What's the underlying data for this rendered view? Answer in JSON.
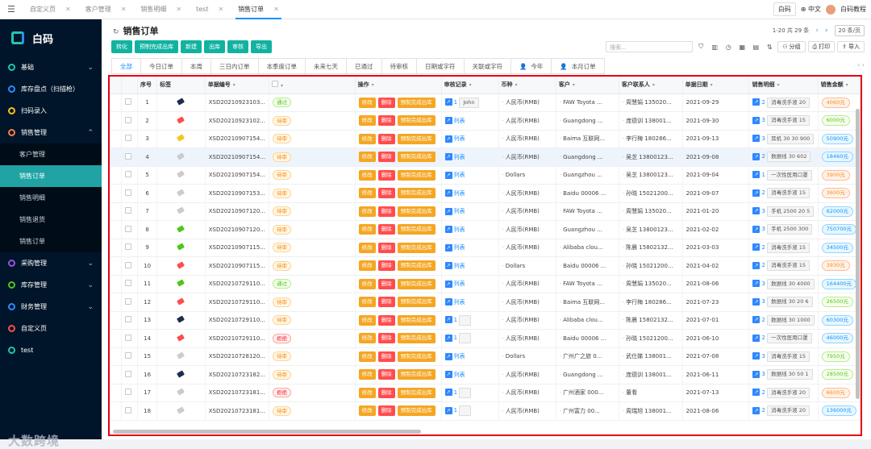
{
  "topbar": {
    "tabs": [
      "自定义页",
      "客户管理",
      "销售明细",
      "test",
      "销售订单"
    ],
    "active": 4,
    "right": [
      "白码",
      "中文",
      "白码教程"
    ]
  },
  "sidebar": {
    "logo": "白码",
    "items": [
      {
        "label": "基础",
        "color": "#1fc6b0",
        "chev": "⌄"
      },
      {
        "label": "库存盘点（扫描枪）",
        "color": "#2a8cff",
        "chev": ""
      },
      {
        "label": "扫码录入",
        "color": "#f5c518",
        "chev": ""
      },
      {
        "label": "销售管理",
        "color": "#ff7a45",
        "chev": "⌃"
      }
    ],
    "subs": [
      "客户管理",
      "销售订单",
      "销售明细",
      "销售退货",
      "销售订单"
    ],
    "items2": [
      {
        "label": "采购管理",
        "color": "#9254de",
        "chev": "⌄"
      },
      {
        "label": "库存管理",
        "color": "#52c41a",
        "chev": "⌄"
      },
      {
        "label": "财务管理",
        "color": "#2a8cff",
        "chev": "⌄"
      },
      {
        "label": "自定义页",
        "color": "#ff4d4f",
        "chev": ""
      },
      {
        "label": "test",
        "color": "#1fc6b0",
        "chev": ""
      }
    ],
    "watermark": "大数跨境"
  },
  "page": {
    "title": "销售订单",
    "buttons": [
      "转化",
      "预制完成出库",
      "新建",
      "出库",
      "审核",
      "导出"
    ],
    "pager": {
      "range": "1-20 共 29 条",
      "size": "20 条/页"
    },
    "search_placeholder": "搜索...",
    "group": "分组",
    "print": "打印",
    "export": "导入",
    "filters": [
      "全部",
      "今日订单",
      "本周",
      "三日内订单",
      "本季度订单",
      "未来七天",
      "已通过",
      "待审核",
      "日期或字符",
      "关联或字符",
      "今年",
      "本月订单"
    ]
  },
  "columns": [
    "序号",
    "标签",
    "单据编号",
    "",
    "操作",
    "审核记录",
    "币种",
    "客户",
    "客户联系人",
    "单据日期",
    "销售明细",
    "销售金额"
  ],
  "ops": {
    "edit": "修改",
    "del": "删除",
    "complete": "预制完成出库"
  },
  "review_link": "列表",
  "rows": [
    {
      "n": "1",
      "color": "#1d2d50",
      "no": "XSD20210923103...",
      "st": "通过",
      "rv": "1",
      "rvx": "John",
      "cur": "人民币(RMB)",
      "cust": "FAW Toyota ...",
      "ct": "周慧娟 135020...",
      "date": "2021-09-29",
      "dn": "2",
      "dx": "消毒洗手液 20",
      "amt": "4060元",
      "ac": "o"
    },
    {
      "n": "2",
      "color": "#ff4d4f",
      "no": "XSD20210923102...",
      "st": "待审",
      "rv": "",
      "rvx": "",
      "cur": "人民币(RMB)",
      "cust": "Guangdong ...",
      "ct": "庞德训 138001...",
      "date": "2021-09-30",
      "dn": "3",
      "dx": "消毒洗手液 15",
      "amt": "6000元",
      "ac": "g"
    },
    {
      "n": "3",
      "color": "#f5c518",
      "no": "XSD20210907154...",
      "st": "待审",
      "rv": "",
      "rvx": "",
      "cur": "人民币(RMB)",
      "cust": "Baima 互联网...",
      "ct": "李行梅 180286...",
      "date": "2021-09-13",
      "dn": "3",
      "dx": "耳机 30 30 900",
      "amt": "50900元",
      "ac": "b"
    },
    {
      "n": "4",
      "color": "#cccccc",
      "no": "XSD20210907154...",
      "st": "待审",
      "rv": "",
      "rvx": "",
      "cur": "人民币(RMB)",
      "cust": "Guangdong ...",
      "ct": "吴芝 13800123...",
      "date": "2021-09-08",
      "dn": "2",
      "dx": "数据线 30 602",
      "amt": "18460元",
      "ac": "b"
    },
    {
      "n": "5",
      "color": "#cccccc",
      "no": "XSD20210907154...",
      "st": "待审",
      "rv": "",
      "rvx": "",
      "cur": "Dollars",
      "cust": "Guangzhou ...",
      "ct": "吴芝 13800123...",
      "date": "2021-09-04",
      "dn": "1",
      "dx": "一次性医用口罩",
      "amt": "3900元",
      "ac": "o"
    },
    {
      "n": "6",
      "color": "#cccccc",
      "no": "XSD20210907153...",
      "st": "待审",
      "rv": "",
      "rvx": "",
      "cur": "人民币(RMB)",
      "cust": "Baidu 00006 ...",
      "ct": "孙晓 15021200...",
      "date": "2021-09-07",
      "dn": "2",
      "dx": "消毒洗手液 15",
      "amt": "3600元",
      "ac": "o"
    },
    {
      "n": "7",
      "color": "#cccccc",
      "no": "XSD20210907120...",
      "st": "待审",
      "rv": "",
      "rvx": "",
      "cur": "人民币(RMB)",
      "cust": "FAW Toyota ...",
      "ct": "周慧娟 135020...",
      "date": "2021-01-20",
      "dn": "3",
      "dx": "手机 2500 20 5",
      "amt": "62000元",
      "ac": "b"
    },
    {
      "n": "8",
      "color": "#52c41a",
      "no": "XSD20210907120...",
      "st": "待审",
      "rv": "",
      "rvx": "",
      "cur": "人民币(RMB)",
      "cust": "Guangzhou ...",
      "ct": "吴芝 13800123...",
      "date": "2021-02-02",
      "dn": "3",
      "dx": "手机 2500 300",
      "amt": "750700元",
      "ac": "b"
    },
    {
      "n": "9",
      "color": "#52c41a",
      "no": "XSD20210907115...",
      "st": "待审",
      "rv": "",
      "rvx": "",
      "cur": "人民币(RMB)",
      "cust": "Alibaba clou...",
      "ct": "陈晨 15802132...",
      "date": "2021-03-03",
      "dn": "2",
      "dx": "消毒洗手液 15",
      "amt": "34500元",
      "ac": "b"
    },
    {
      "n": "10",
      "color": "#ff4d4f",
      "no": "XSD20210907115...",
      "st": "待审",
      "rv": "",
      "rvx": "",
      "cur": "Dollars",
      "cust": "Baidu 00006 ...",
      "ct": "孙晓 15021200...",
      "date": "2021-04-02",
      "dn": "2",
      "dx": "消毒洗手液 15",
      "amt": "3930元",
      "ac": "o"
    },
    {
      "n": "11",
      "color": "#52c41a",
      "no": "XSD20210729110...",
      "st": "通过",
      "rv": "",
      "rvx": "",
      "cur": "人民币(RMB)",
      "cust": "FAW Toyota ...",
      "ct": "周慧娟 135020...",
      "date": "2021-08-06",
      "dn": "3",
      "dx": "数据线 30 4000",
      "amt": "164400元",
      "ac": "b"
    },
    {
      "n": "12",
      "color": "#ff4d4f",
      "no": "XSD20210729110...",
      "st": "待审",
      "rv": "",
      "rvx": "",
      "cur": "人民币(RMB)",
      "cust": "Baima 互联网...",
      "ct": "李行梅 180286...",
      "date": "2021-07-23",
      "dn": "3",
      "dx": "数据线 30 20 6",
      "amt": "26500元",
      "ac": "g"
    },
    {
      "n": "13",
      "color": "#1d2d50",
      "no": "XSD20210729110...",
      "st": "待审",
      "rv": "1",
      "rvx": " ",
      "cur": "人民币(RMB)",
      "cust": "Alibaba clou...",
      "ct": "陈晨 15802132...",
      "date": "2021-07-01",
      "dn": "2",
      "dx": "数据线 30 1000",
      "amt": "60300元",
      "ac": "b"
    },
    {
      "n": "14",
      "color": "#ff4d4f",
      "no": "XSD20210729110...",
      "st": "拒绝",
      "rv": "1",
      "rvx": " ",
      "cur": "人民币(RMB)",
      "cust": "Baidu 00006 ...",
      "ct": "孙晓 15021200...",
      "date": "2021-06-10",
      "dn": "2",
      "dx": "一次性医用口罩",
      "amt": "46000元",
      "ac": "b"
    },
    {
      "n": "15",
      "color": "#cccccc",
      "no": "XSD20210728120...",
      "st": "待审",
      "rv": "",
      "rvx": "",
      "cur": "Dollars",
      "cust": "广州广之旅 0...",
      "ct": "武仕娣 138001...",
      "date": "2021-07-08",
      "dn": "3",
      "dx": "消毒洗手液 15",
      "amt": "7950元",
      "ac": "g"
    },
    {
      "n": "16",
      "color": "#1d2d50",
      "no": "XSD20210723182...",
      "st": "待审",
      "rv": "",
      "rvx": "",
      "cur": "人民币(RMB)",
      "cust": "Guangdong ...",
      "ct": "庞德训 138001...",
      "date": "2021-06-11",
      "dn": "3",
      "dx": "数据线 30 50 1",
      "amt": "28500元",
      "ac": "g"
    },
    {
      "n": "17",
      "color": "#cccccc",
      "no": "XSD20210723181...",
      "st": "拒绝",
      "rv": "1",
      "rvx": " ",
      "cur": "人民币(RMB)",
      "cust": "广州酒家 000...",
      "ct": "董看",
      "date": "2021-07-13",
      "dn": "2",
      "dx": "消毒洗手液 20",
      "amt": "6600元",
      "ac": "o"
    },
    {
      "n": "18",
      "color": "#cccccc",
      "no": "XSD20210723181...",
      "st": "待审",
      "rv": "1",
      "rvx": " ",
      "cur": "人民币(RMB)",
      "cust": "广州富力 00...",
      "ct": "周瑞旭 138001...",
      "date": "2021-08-06",
      "dn": "2",
      "dx": "消毒洗手液 20",
      "amt": "136000元",
      "ac": "b"
    }
  ]
}
